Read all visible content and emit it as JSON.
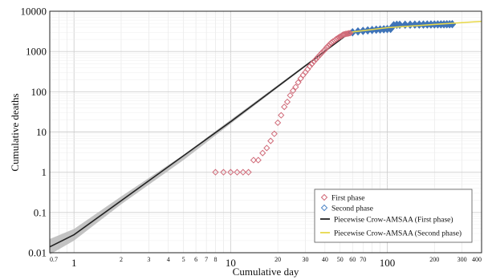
{
  "chart_data": {
    "type": "scatter",
    "xlabel": "Cumulative day",
    "ylabel": "Cumulative deaths",
    "x_scale": "log",
    "y_scale": "log",
    "xlim": [
      0.7,
      400
    ],
    "ylim": [
      0.01,
      10000
    ],
    "grid": true,
    "legend_position": "bottom-right",
    "x_major_ticks": [
      {
        "value": 1,
        "label": "1"
      },
      {
        "value": 10,
        "label": "10"
      },
      {
        "value": 100,
        "label": "100"
      }
    ],
    "x_minor_ticks": [
      {
        "value": 0.7,
        "label": "0.7"
      },
      {
        "value": 2,
        "label": "2"
      },
      {
        "value": 3,
        "label": "3"
      },
      {
        "value": 4,
        "label": "4"
      },
      {
        "value": 5,
        "label": "5"
      },
      {
        "value": 6,
        "label": "6"
      },
      {
        "value": 7,
        "label": "7"
      },
      {
        "value": 8,
        "label": "8"
      },
      {
        "value": 20,
        "label": "20"
      },
      {
        "value": 30,
        "label": "30"
      },
      {
        "value": 40,
        "label": "40"
      },
      {
        "value": 50,
        "label": "50"
      },
      {
        "value": 60,
        "label": "60"
      },
      {
        "value": 70,
        "label": "70"
      },
      {
        "value": 200,
        "label": "200"
      },
      {
        "value": 300,
        "label": "300"
      },
      {
        "value": 400,
        "label": "400"
      }
    ],
    "y_ticks": [
      {
        "value": 0.01,
        "label": "0.01"
      },
      {
        "value": 0.1,
        "label": "0.1"
      },
      {
        "value": 1,
        "label": "1"
      },
      {
        "value": 10,
        "label": "10"
      },
      {
        "value": 100,
        "label": "100"
      },
      {
        "value": 1000,
        "label": "1000"
      },
      {
        "value": 10000,
        "label": "10000"
      }
    ],
    "series": [
      {
        "name": "First phase",
        "kind": "scatter",
        "marker": "diamond",
        "color": "#d06a78",
        "points": [
          [
            8,
            1
          ],
          [
            9,
            1
          ],
          [
            10,
            1
          ],
          [
            11,
            1
          ],
          [
            12,
            1
          ],
          [
            13,
            1
          ],
          [
            14,
            2
          ],
          [
            15,
            2
          ],
          [
            16,
            3
          ],
          [
            17,
            4
          ],
          [
            18,
            6
          ],
          [
            19,
            9
          ],
          [
            20,
            17
          ],
          [
            21,
            26
          ],
          [
            22,
            42
          ],
          [
            23,
            56
          ],
          [
            24,
            81
          ],
          [
            25,
            106
          ],
          [
            26,
            131
          ],
          [
            27,
            170
          ],
          [
            28,
            213
          ],
          [
            29,
            259
          ],
          [
            30,
            304
          ],
          [
            31,
            361
          ],
          [
            32,
            425
          ],
          [
            33,
            490
          ],
          [
            34,
            564
          ],
          [
            35,
            637
          ],
          [
            36,
            722
          ],
          [
            37,
            811
          ],
          [
            38,
            908
          ],
          [
            39,
            1016
          ],
          [
            40,
            1113
          ],
          [
            41,
            1259
          ],
          [
            42,
            1380
          ],
          [
            43,
            1523
          ],
          [
            44,
            1665
          ],
          [
            45,
            1770
          ],
          [
            46,
            1868
          ],
          [
            47,
            2004
          ],
          [
            48,
            2118
          ],
          [
            49,
            2236
          ],
          [
            50,
            2345
          ],
          [
            51,
            2442
          ],
          [
            52,
            2592
          ],
          [
            53,
            2663
          ],
          [
            54,
            2715
          ],
          [
            55,
            2744
          ],
          [
            56,
            2788
          ],
          [
            57,
            2835
          ],
          [
            58,
            2870
          ]
        ]
      },
      {
        "name": "Second phase",
        "kind": "scatter",
        "marker": "diamond",
        "color": "#4f86c6",
        "points": [
          [
            60,
            3000
          ],
          [
            65,
            3150
          ],
          [
            70,
            3250
          ],
          [
            75,
            3350
          ],
          [
            80,
            3420
          ],
          [
            85,
            3480
          ],
          [
            90,
            3520
          ],
          [
            95,
            3560
          ],
          [
            100,
            3600
          ],
          [
            105,
            3650
          ],
          [
            110,
            4500
          ],
          [
            115,
            4600
          ],
          [
            120,
            4620
          ],
          [
            130,
            4630
          ],
          [
            140,
            4640
          ],
          [
            150,
            4650
          ],
          [
            160,
            4660
          ],
          [
            170,
            4670
          ],
          [
            180,
            4680
          ],
          [
            190,
            4690
          ],
          [
            200,
            4700
          ],
          [
            210,
            4710
          ],
          [
            220,
            4720
          ],
          [
            230,
            4730
          ],
          [
            240,
            4740
          ],
          [
            250,
            4750
          ],
          [
            260,
            4760
          ]
        ]
      },
      {
        "name": "Piecewise Crow-AMSAA (First phase)",
        "kind": "line",
        "color": "#222222",
        "band_color": "#b8b8b8",
        "points": [
          [
            0.7,
            0.014
          ],
          [
            1,
            0.028
          ],
          [
            10,
            18
          ],
          [
            58,
            3000
          ]
        ],
        "band": [
          {
            "x": 0.7,
            "lower": 0.009,
            "upper": 0.022
          },
          {
            "x": 1,
            "lower": 0.02,
            "upper": 0.039
          },
          {
            "x": 2,
            "lower": 0.16,
            "upper": 0.25
          },
          {
            "x": 5,
            "lower": 2.0,
            "upper": 2.7
          },
          {
            "x": 10,
            "lower": 16,
            "upper": 20
          },
          {
            "x": 30,
            "lower": 420,
            "upper": 470
          },
          {
            "x": 58,
            "lower": 2900,
            "upper": 3100
          }
        ]
      },
      {
        "name": "Piecewise Crow-AMSAA (Second phase)",
        "kind": "line",
        "color": "#e8d84a",
        "points": [
          [
            58,
            3000
          ],
          [
            100,
            3900
          ],
          [
            200,
            4700
          ],
          [
            400,
            5600
          ]
        ]
      }
    ]
  }
}
